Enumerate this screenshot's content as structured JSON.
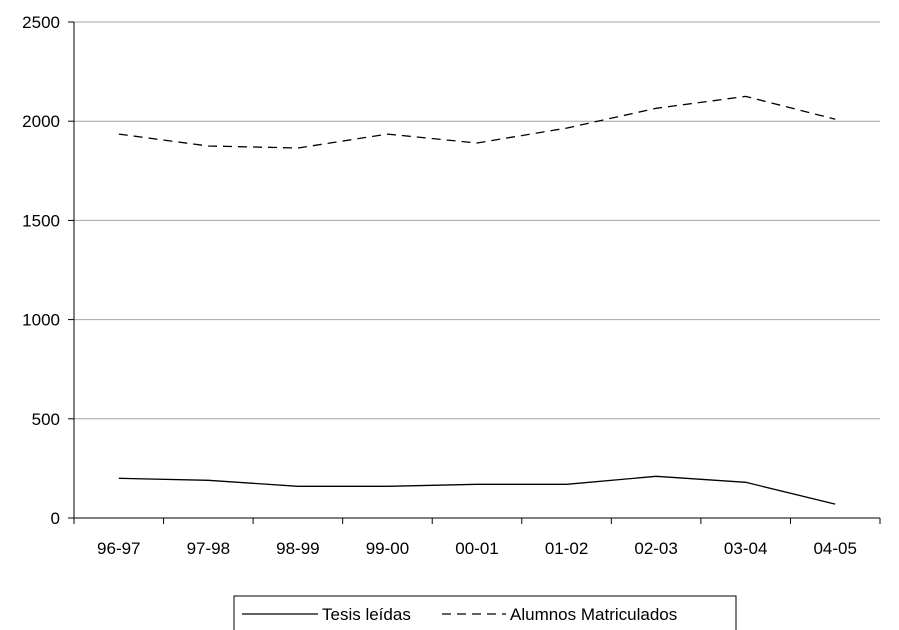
{
  "chart_data": {
    "type": "line",
    "title": "",
    "xlabel": "",
    "ylabel": "",
    "categories": [
      "96-97",
      "97-98",
      "98-99",
      "99-00",
      "00-01",
      "01-02",
      "02-03",
      "03-04",
      "04-05"
    ],
    "ylim": [
      0,
      2500
    ],
    "yticks": [
      "0",
      "500",
      "1000",
      "1500",
      "2000",
      "2500"
    ],
    "grid": "horizontal",
    "legend_position": "bottom",
    "series": [
      {
        "name": "Tesis leídas",
        "style": "solid",
        "color": "#000000",
        "values": [
          200,
          190,
          160,
          160,
          170,
          170,
          210,
          180,
          70
        ]
      },
      {
        "name": "Alumnos Matriculados",
        "style": "dashed",
        "color": "#000000",
        "values": [
          1935,
          1875,
          1865,
          1935,
          1890,
          1965,
          2065,
          2125,
          2010
        ]
      }
    ]
  }
}
